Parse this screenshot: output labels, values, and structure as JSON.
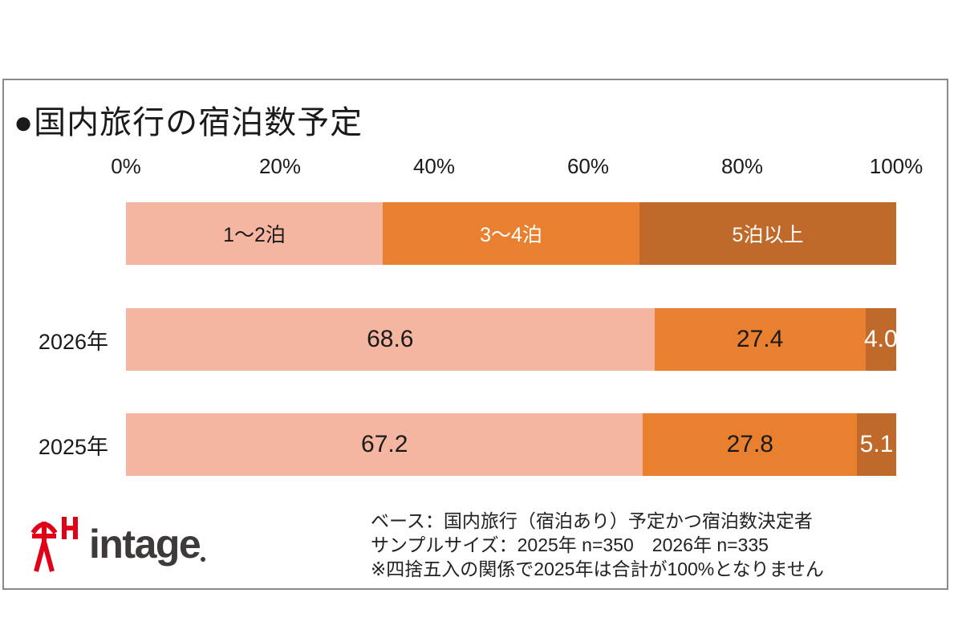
{
  "title": "●国内旅行の宿泊数予定",
  "chart_data": {
    "type": "bar",
    "orientation": "horizontal",
    "stacked": true,
    "title": "国内旅行の宿泊数予定",
    "categories": [
      "2026年",
      "2025年"
    ],
    "series": [
      {
        "name": "1〜2泊",
        "color": "#F4B5A1",
        "legend_text_color": "#1a1a1a",
        "value_text_color": "#1a1a1a",
        "values": [
          68.6,
          67.2
        ]
      },
      {
        "name": "3〜4泊",
        "color": "#E8802F",
        "legend_text_color": "#ffffff",
        "value_text_color": "#1a1a1a",
        "values": [
          27.4,
          27.8
        ]
      },
      {
        "name": "5泊以上",
        "color": "#BF6A2B",
        "legend_text_color": "#ffffff",
        "value_text_color": "#ffffff",
        "values": [
          4.0,
          5.1
        ]
      }
    ],
    "value_labels": [
      [
        "68.6",
        "27.4",
        "4.0"
      ],
      [
        "67.2",
        "27.8",
        "5.1"
      ]
    ],
    "xlim": [
      0,
      100
    ],
    "x_ticks": [
      "0%",
      "20%",
      "40%",
      "60%",
      "80%",
      "100%"
    ],
    "grid": false,
    "legend_position": "top-bar"
  },
  "footer": {
    "logo": {
      "mark": "intage-seal-mark",
      "text": "intage"
    },
    "notes": [
      "ベース：国内旅行（宿泊あり）予定かつ宿泊数決定者",
      "サンプルサイズ：2025年 n=350　2026年 n=335",
      "※四捨五入の関係で2025年は合計が100%となりません"
    ]
  },
  "colors": {
    "panel_border": "#8a8a8a",
    "text": "#1a1a1a",
    "footnote_text": "#222222",
    "logo_red": "#E00017",
    "logo_gray": "#3e3a39"
  }
}
